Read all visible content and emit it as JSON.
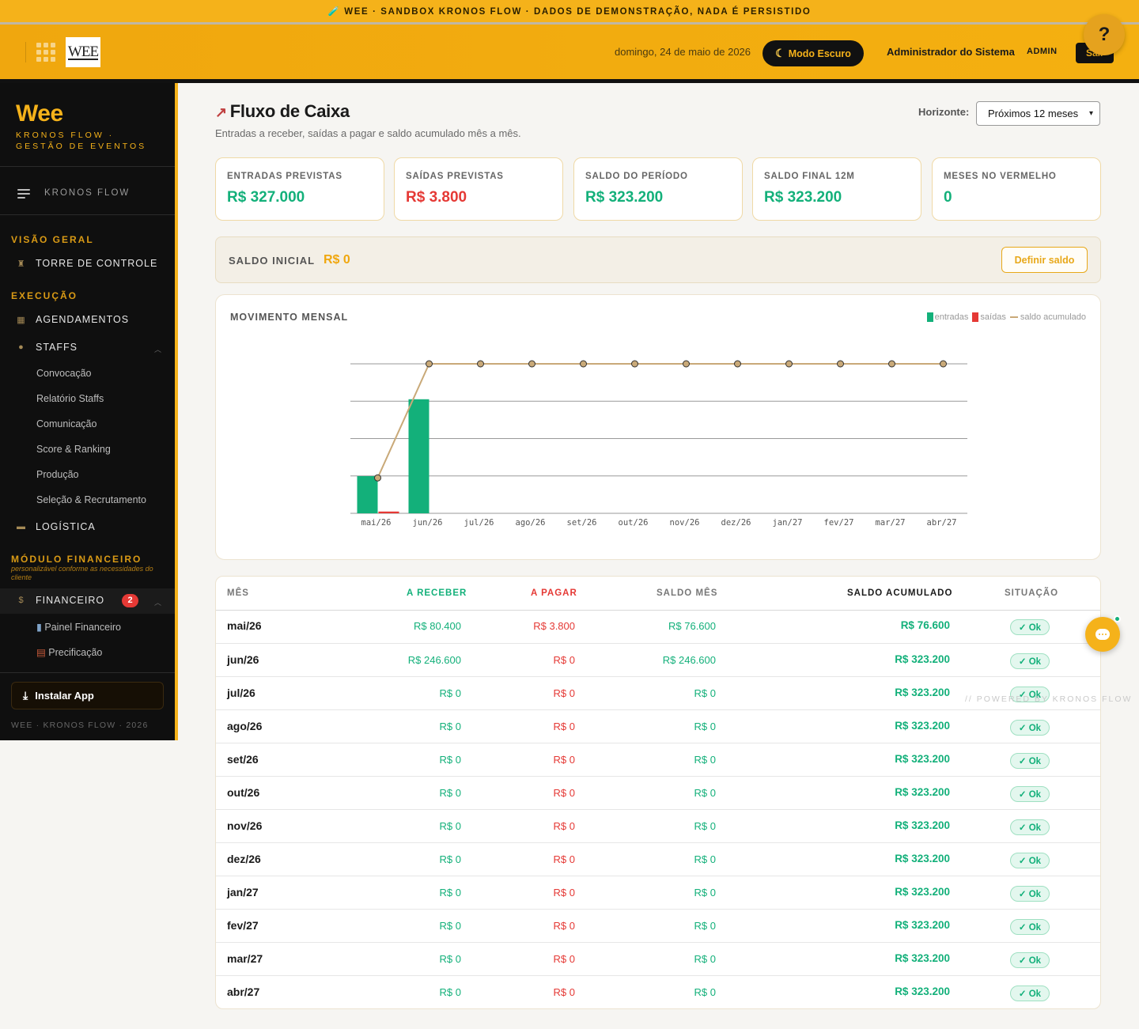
{
  "banner": {
    "text": "🧪 WEE · SANDBOX KRONOS FLOW · DADOS DE DEMONSTRAÇÃO, NADA É PERSISTIDO"
  },
  "header": {
    "logo_text": "WEE",
    "date": "domingo, 24 de maio de 2026",
    "dark_mode_label": "Modo Escuro",
    "user_name": "Administrador do Sistema",
    "user_role": "ADMIN",
    "exit_label": "Sair",
    "help_label": "?"
  },
  "sidebar": {
    "brand": "Wee",
    "brand_sub": "KRONOS FLOW · GESTÃO DE EVENTOS",
    "title": "KRONOS FLOW",
    "sections": {
      "visao_geral": "VISÃO GERAL",
      "execucao": "EXECUÇÃO",
      "financeiro": "MÓDULO FINANCEIRO"
    },
    "financeiro_note": "personalizável conforme as necessidades do cliente",
    "items": {
      "torre": "TORRE DE CONTROLE",
      "agendamentos": "AGENDAMENTOS",
      "staffs": "STAFFS",
      "logistica": "LOGÍSTICA",
      "financeiro": "FINANCEIRO"
    },
    "staffs_sub": [
      "Convocação",
      "Relatório Staffs",
      "Comunicação",
      "Score & Ranking",
      "Produção",
      "Seleção & Recrutamento"
    ],
    "financeiro_badge": "2",
    "financeiro_sub": [
      "Painel Financeiro",
      "Precificação"
    ],
    "install_label": "Instalar App",
    "footer": "WEE · KRONOS FLOW · 2026"
  },
  "page": {
    "title": "Fluxo de Caixa",
    "subtitle": "Entradas a receber, saídas a pagar e saldo acumulado mês a mês.",
    "horizon_label": "Horizonte:",
    "horizon_value": "Próximos 12 meses"
  },
  "kpis": [
    {
      "label": "ENTRADAS PREVISTAS",
      "value": "R$ 327.000",
      "tone": "green"
    },
    {
      "label": "SAÍDAS PREVISTAS",
      "value": "R$ 3.800",
      "tone": "red"
    },
    {
      "label": "SALDO DO PERÍODO",
      "value": "R$ 323.200",
      "tone": "green"
    },
    {
      "label": "SALDO FINAL 12M",
      "value": "R$ 323.200",
      "tone": "green"
    },
    {
      "label": "MESES NO VERMELHO",
      "value": "0",
      "tone": "green"
    }
  ],
  "saldo_inicial": {
    "label": "SALDO INICIAL",
    "value": "R$ 0",
    "button": "Definir saldo"
  },
  "chart": {
    "title": "MOVIMENTO MENSAL",
    "legend": {
      "entradas": "entradas",
      "saidas": "saídas",
      "saldo": "saldo acumulado"
    },
    "colors": {
      "entradas": "#13b07a",
      "saidas": "#e53935",
      "saldo": "#c9a978"
    }
  },
  "chart_data": {
    "type": "bar",
    "title": "MOVIMENTO MENSAL",
    "categories": [
      "mai/26",
      "jun/26",
      "jul/26",
      "ago/26",
      "set/26",
      "out/26",
      "nov/26",
      "dez/26",
      "jan/27",
      "fev/27",
      "mar/27",
      "abr/27"
    ],
    "series": [
      {
        "name": "entradas",
        "type": "bar",
        "values": [
          80400,
          246600,
          0,
          0,
          0,
          0,
          0,
          0,
          0,
          0,
          0,
          0
        ]
      },
      {
        "name": "saídas",
        "type": "bar",
        "values": [
          3800,
          0,
          0,
          0,
          0,
          0,
          0,
          0,
          0,
          0,
          0,
          0
        ]
      },
      {
        "name": "saldo acumulado",
        "type": "line",
        "values": [
          76600,
          323200,
          323200,
          323200,
          323200,
          323200,
          323200,
          323200,
          323200,
          323200,
          323200,
          323200
        ]
      }
    ],
    "ylim": [
      0,
      323200
    ],
    "grid": true,
    "legend_position": "top-right"
  },
  "table": {
    "headers": {
      "mes": "MÊS",
      "receber": "A RECEBER",
      "pagar": "A PAGAR",
      "saldo_mes": "SALDO MÊS",
      "saldo_acum": "SALDO ACUMULADO",
      "situacao": "SITUAÇÃO"
    },
    "rows": [
      {
        "mes": "mai/26",
        "receber": "R$ 80.400",
        "pagar": "R$ 3.800",
        "saldo_mes": "R$ 76.600",
        "saldo_acum": "R$ 76.600",
        "situacao": "✓ Ok"
      },
      {
        "mes": "jun/26",
        "receber": "R$ 246.600",
        "pagar": "R$ 0",
        "saldo_mes": "R$ 246.600",
        "saldo_acum": "R$ 323.200",
        "situacao": "✓ Ok"
      },
      {
        "mes": "jul/26",
        "receber": "R$ 0",
        "pagar": "R$ 0",
        "saldo_mes": "R$ 0",
        "saldo_acum": "R$ 323.200",
        "situacao": "✓ Ok"
      },
      {
        "mes": "ago/26",
        "receber": "R$ 0",
        "pagar": "R$ 0",
        "saldo_mes": "R$ 0",
        "saldo_acum": "R$ 323.200",
        "situacao": "✓ Ok"
      },
      {
        "mes": "set/26",
        "receber": "R$ 0",
        "pagar": "R$ 0",
        "saldo_mes": "R$ 0",
        "saldo_acum": "R$ 323.200",
        "situacao": "✓ Ok"
      },
      {
        "mes": "out/26",
        "receber": "R$ 0",
        "pagar": "R$ 0",
        "saldo_mes": "R$ 0",
        "saldo_acum": "R$ 323.200",
        "situacao": "✓ Ok"
      },
      {
        "mes": "nov/26",
        "receber": "R$ 0",
        "pagar": "R$ 0",
        "saldo_mes": "R$ 0",
        "saldo_acum": "R$ 323.200",
        "situacao": "✓ Ok"
      },
      {
        "mes": "dez/26",
        "receber": "R$ 0",
        "pagar": "R$ 0",
        "saldo_mes": "R$ 0",
        "saldo_acum": "R$ 323.200",
        "situacao": "✓ Ok"
      },
      {
        "mes": "jan/27",
        "receber": "R$ 0",
        "pagar": "R$ 0",
        "saldo_mes": "R$ 0",
        "saldo_acum": "R$ 323.200",
        "situacao": "✓ Ok"
      },
      {
        "mes": "fev/27",
        "receber": "R$ 0",
        "pagar": "R$ 0",
        "saldo_mes": "R$ 0",
        "saldo_acum": "R$ 323.200",
        "situacao": "✓ Ok"
      },
      {
        "mes": "mar/27",
        "receber": "R$ 0",
        "pagar": "R$ 0",
        "saldo_mes": "R$ 0",
        "saldo_acum": "R$ 323.200",
        "situacao": "✓ Ok"
      },
      {
        "mes": "abr/27",
        "receber": "R$ 0",
        "pagar": "R$ 0",
        "saldo_mes": "R$ 0",
        "saldo_acum": "R$ 323.200",
        "situacao": "✓ Ok"
      }
    ]
  },
  "watermark": "// POWERED BY KRONOS FLOW"
}
